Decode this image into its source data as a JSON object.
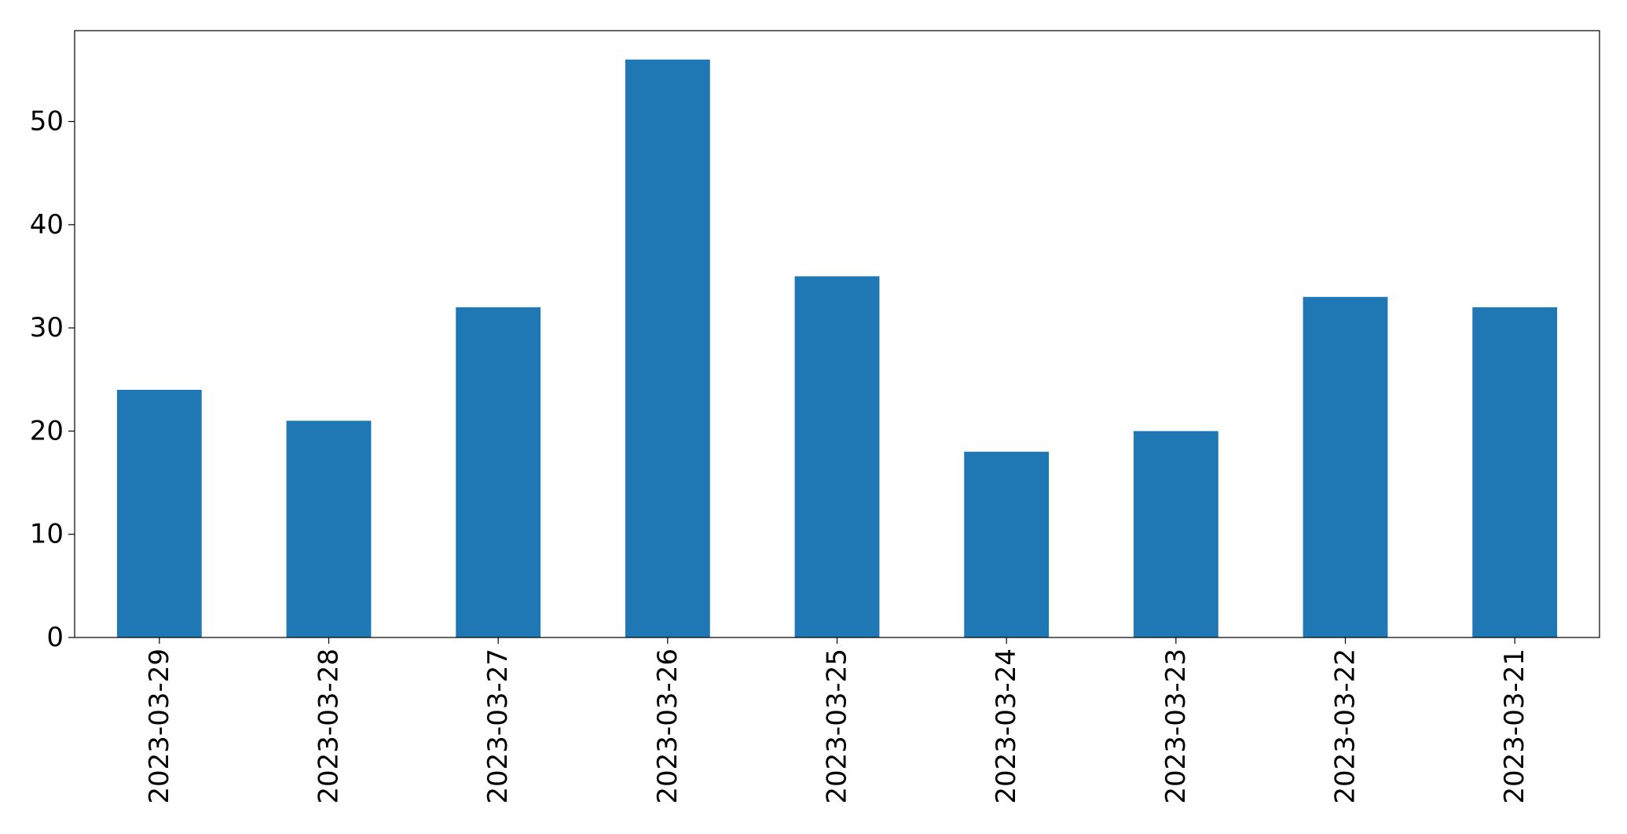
{
  "chart_data": {
    "type": "bar",
    "title": "",
    "xlabel": "",
    "ylabel": "",
    "categories": [
      "2023-03-29",
      "2023-03-28",
      "2023-03-27",
      "2023-03-26",
      "2023-03-25",
      "2023-03-24",
      "2023-03-23",
      "2023-03-22",
      "2023-03-21"
    ],
    "values": [
      24,
      21,
      32,
      56,
      35,
      18,
      20,
      33,
      32
    ],
    "ylim": [
      0,
      58.8
    ],
    "yticks": [
      0,
      10,
      20,
      30,
      40,
      50
    ],
    "grid": false,
    "legend": "none",
    "bar_color": "#1f77b4",
    "x_tick_rotation": "vertical"
  }
}
